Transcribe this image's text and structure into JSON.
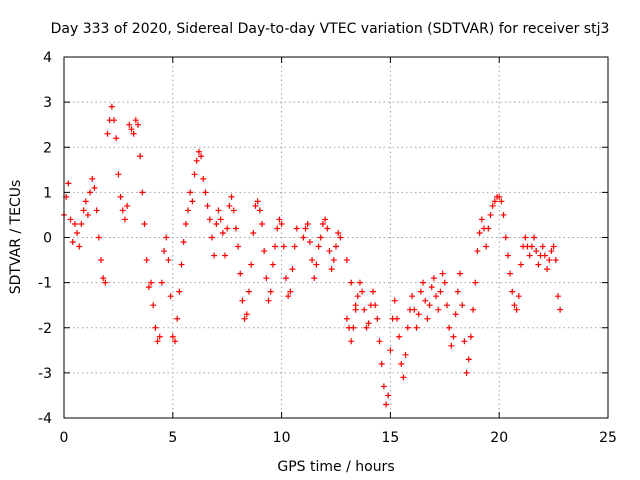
{
  "chart_data": {
    "type": "scatter",
    "title": "Day 333 of 2020, Sidereal Day-to-day VTEC variation (SDTVAR) for receiver stj3",
    "xlabel": "GPS time / hours",
    "ylabel": "SDTVAR / TECUs",
    "xlim": [
      0,
      25
    ],
    "ylim": [
      -4,
      4
    ],
    "xticks": [
      0,
      5,
      10,
      15,
      20,
      25
    ],
    "yticks": [
      -4,
      -3,
      -2,
      -1,
      0,
      1,
      2,
      3,
      4
    ],
    "grid": true,
    "marker": "+",
    "color": "#ff0000",
    "series": [
      {
        "name": "SDTVAR",
        "points": [
          [
            0.0,
            0.5
          ],
          [
            0.1,
            0.9
          ],
          [
            0.2,
            1.2
          ],
          [
            0.3,
            0.4
          ],
          [
            0.4,
            -0.1
          ],
          [
            0.5,
            0.3
          ],
          [
            0.6,
            0.1
          ],
          [
            0.7,
            -0.2
          ],
          [
            0.8,
            0.3
          ],
          [
            0.9,
            0.6
          ],
          [
            1.0,
            0.8
          ],
          [
            1.1,
            0.5
          ],
          [
            1.2,
            1.0
          ],
          [
            1.3,
            1.3
          ],
          [
            1.4,
            1.1
          ],
          [
            1.5,
            0.6
          ],
          [
            1.6,
            0.0
          ],
          [
            1.7,
            -0.5
          ],
          [
            1.8,
            -0.9
          ],
          [
            1.9,
            -1.0
          ],
          [
            2.0,
            2.3
          ],
          [
            2.1,
            2.6
          ],
          [
            2.2,
            2.9
          ],
          [
            2.3,
            2.6
          ],
          [
            2.4,
            2.2
          ],
          [
            2.5,
            1.4
          ],
          [
            2.6,
            0.9
          ],
          [
            2.7,
            0.6
          ],
          [
            2.8,
            0.4
          ],
          [
            2.9,
            0.7
          ],
          [
            3.0,
            2.5
          ],
          [
            3.1,
            2.4
          ],
          [
            3.2,
            2.3
          ],
          [
            3.3,
            2.6
          ],
          [
            3.4,
            2.5
          ],
          [
            3.5,
            1.8
          ],
          [
            3.6,
            1.0
          ],
          [
            3.7,
            0.3
          ],
          [
            3.8,
            -0.5
          ],
          [
            3.9,
            -1.1
          ],
          [
            4.0,
            -1.0
          ],
          [
            4.1,
            -1.5
          ],
          [
            4.2,
            -2.0
          ],
          [
            4.3,
            -2.3
          ],
          [
            4.4,
            -2.2
          ],
          [
            4.5,
            -1.0
          ],
          [
            4.6,
            -0.3
          ],
          [
            4.7,
            0.0
          ],
          [
            4.8,
            -0.5
          ],
          [
            4.9,
            -1.3
          ],
          [
            5.0,
            -2.2
          ],
          [
            5.1,
            -2.3
          ],
          [
            5.2,
            -1.8
          ],
          [
            5.3,
            -1.2
          ],
          [
            5.4,
            -0.6
          ],
          [
            5.5,
            -0.1
          ],
          [
            5.6,
            0.3
          ],
          [
            5.7,
            0.6
          ],
          [
            5.8,
            1.0
          ],
          [
            5.9,
            0.8
          ],
          [
            6.0,
            1.4
          ],
          [
            6.1,
            1.7
          ],
          [
            6.2,
            1.9
          ],
          [
            6.3,
            1.8
          ],
          [
            6.4,
            1.3
          ],
          [
            6.5,
            1.0
          ],
          [
            6.6,
            0.7
          ],
          [
            6.7,
            0.4
          ],
          [
            6.8,
            0.0
          ],
          [
            6.9,
            -0.4
          ],
          [
            7.0,
            0.3
          ],
          [
            7.1,
            0.6
          ],
          [
            7.2,
            0.4
          ],
          [
            7.3,
            0.1
          ],
          [
            7.4,
            -0.4
          ],
          [
            7.5,
            0.2
          ],
          [
            7.6,
            0.7
          ],
          [
            7.7,
            0.9
          ],
          [
            7.8,
            0.6
          ],
          [
            7.9,
            0.2
          ],
          [
            8.0,
            -0.2
          ],
          [
            8.1,
            -0.8
          ],
          [
            8.2,
            -1.4
          ],
          [
            8.3,
            -1.8
          ],
          [
            8.4,
            -1.7
          ],
          [
            8.5,
            -1.2
          ],
          [
            8.6,
            -0.6
          ],
          [
            8.7,
            0.1
          ],
          [
            8.8,
            0.7
          ],
          [
            8.9,
            0.8
          ],
          [
            9.0,
            0.6
          ],
          [
            9.1,
            0.3
          ],
          [
            9.2,
            -0.3
          ],
          [
            9.3,
            -0.9
          ],
          [
            9.4,
            -1.4
          ],
          [
            9.5,
            -1.2
          ],
          [
            9.6,
            -0.6
          ],
          [
            9.7,
            -0.2
          ],
          [
            9.8,
            0.2
          ],
          [
            9.9,
            0.4
          ],
          [
            10.0,
            0.3
          ],
          [
            10.1,
            -0.2
          ],
          [
            10.2,
            -0.9
          ],
          [
            10.3,
            -1.3
          ],
          [
            10.4,
            -1.2
          ],
          [
            10.5,
            -0.7
          ],
          [
            10.6,
            -0.2
          ],
          [
            10.7,
            0.2
          ],
          [
            11.0,
            0.0
          ],
          [
            11.1,
            0.2
          ],
          [
            11.2,
            0.3
          ],
          [
            11.3,
            -0.1
          ],
          [
            11.4,
            -0.5
          ],
          [
            11.5,
            -0.9
          ],
          [
            11.6,
            -0.6
          ],
          [
            11.7,
            -0.2
          ],
          [
            11.8,
            0.0
          ],
          [
            11.9,
            0.3
          ],
          [
            12.0,
            0.4
          ],
          [
            12.1,
            0.2
          ],
          [
            12.2,
            -0.3
          ],
          [
            12.3,
            -0.7
          ],
          [
            12.4,
            -0.5
          ],
          [
            12.5,
            -0.2
          ],
          [
            12.6,
            0.1
          ],
          [
            12.7,
            0.0
          ],
          [
            13.0,
            -0.5
          ],
          [
            13.2,
            -1.0
          ],
          [
            13.4,
            -1.5
          ],
          [
            13.0,
            -1.8
          ],
          [
            13.1,
            -2.0
          ],
          [
            13.2,
            -2.3
          ],
          [
            13.3,
            -2.0
          ],
          [
            13.4,
            -1.6
          ],
          [
            13.5,
            -1.3
          ],
          [
            13.6,
            -1.0
          ],
          [
            13.7,
            -1.2
          ],
          [
            13.8,
            -1.6
          ],
          [
            13.9,
            -2.0
          ],
          [
            14.0,
            -1.9
          ],
          [
            14.1,
            -1.5
          ],
          [
            14.2,
            -1.2
          ],
          [
            14.3,
            -1.5
          ],
          [
            14.4,
            -1.8
          ],
          [
            14.5,
            -2.3
          ],
          [
            14.6,
            -2.8
          ],
          [
            14.7,
            -3.3
          ],
          [
            14.8,
            -3.7
          ],
          [
            14.9,
            -3.5
          ],
          [
            15.0,
            -2.5
          ],
          [
            15.1,
            -1.8
          ],
          [
            15.2,
            -1.4
          ],
          [
            15.3,
            -1.8
          ],
          [
            15.4,
            -2.2
          ],
          [
            15.5,
            -2.8
          ],
          [
            15.6,
            -3.1
          ],
          [
            15.7,
            -2.6
          ],
          [
            15.8,
            -2.0
          ],
          [
            15.9,
            -1.6
          ],
          [
            16.0,
            -1.3
          ],
          [
            16.1,
            -1.6
          ],
          [
            16.2,
            -2.0
          ],
          [
            16.3,
            -1.7
          ],
          [
            16.4,
            -1.2
          ],
          [
            16.5,
            -1.0
          ],
          [
            16.6,
            -1.4
          ],
          [
            16.7,
            -1.8
          ],
          [
            16.8,
            -1.5
          ],
          [
            16.9,
            -1.1
          ],
          [
            17.0,
            -0.9
          ],
          [
            17.1,
            -1.3
          ],
          [
            17.2,
            -1.6
          ],
          [
            17.3,
            -1.2
          ],
          [
            17.4,
            -0.8
          ],
          [
            17.5,
            -1.0
          ],
          [
            17.6,
            -1.5
          ],
          [
            17.7,
            -2.0
          ],
          [
            17.8,
            -2.4
          ],
          [
            17.9,
            -2.2
          ],
          [
            18.0,
            -1.7
          ],
          [
            18.1,
            -1.2
          ],
          [
            18.2,
            -0.8
          ],
          [
            18.3,
            -1.5
          ],
          [
            18.4,
            -2.3
          ],
          [
            18.5,
            -3.0
          ],
          [
            18.6,
            -2.7
          ],
          [
            18.7,
            -2.2
          ],
          [
            18.8,
            -1.6
          ],
          [
            18.9,
            -1.0
          ],
          [
            19.0,
            -0.3
          ],
          [
            19.1,
            0.1
          ],
          [
            19.2,
            0.4
          ],
          [
            19.3,
            0.2
          ],
          [
            19.4,
            -0.2
          ],
          [
            19.5,
            0.2
          ],
          [
            19.6,
            0.5
          ],
          [
            19.7,
            0.7
          ],
          [
            19.8,
            0.8
          ],
          [
            19.9,
            0.9
          ],
          [
            20.0,
            0.9
          ],
          [
            20.1,
            0.8
          ],
          [
            20.2,
            0.5
          ],
          [
            20.3,
            0.0
          ],
          [
            20.4,
            -0.4
          ],
          [
            20.5,
            -0.8
          ],
          [
            20.6,
            -1.2
          ],
          [
            20.7,
            -1.5
          ],
          [
            20.8,
            -1.6
          ],
          [
            20.9,
            -1.3
          ],
          [
            21.0,
            -0.6
          ],
          [
            21.1,
            -0.2
          ],
          [
            21.2,
            0.0
          ],
          [
            21.3,
            -0.2
          ],
          [
            21.4,
            -0.4
          ],
          [
            21.5,
            -0.2
          ],
          [
            21.6,
            0.0
          ],
          [
            21.7,
            -0.3
          ],
          [
            21.8,
            -0.6
          ],
          [
            21.9,
            -0.4
          ],
          [
            22.0,
            -0.2
          ],
          [
            22.1,
            -0.4
          ],
          [
            22.2,
            -0.7
          ],
          [
            22.3,
            -0.5
          ],
          [
            22.4,
            -0.3
          ],
          [
            22.5,
            -0.2
          ],
          [
            22.6,
            -0.5
          ],
          [
            22.7,
            -1.3
          ],
          [
            22.8,
            -1.6
          ]
        ]
      }
    ]
  }
}
